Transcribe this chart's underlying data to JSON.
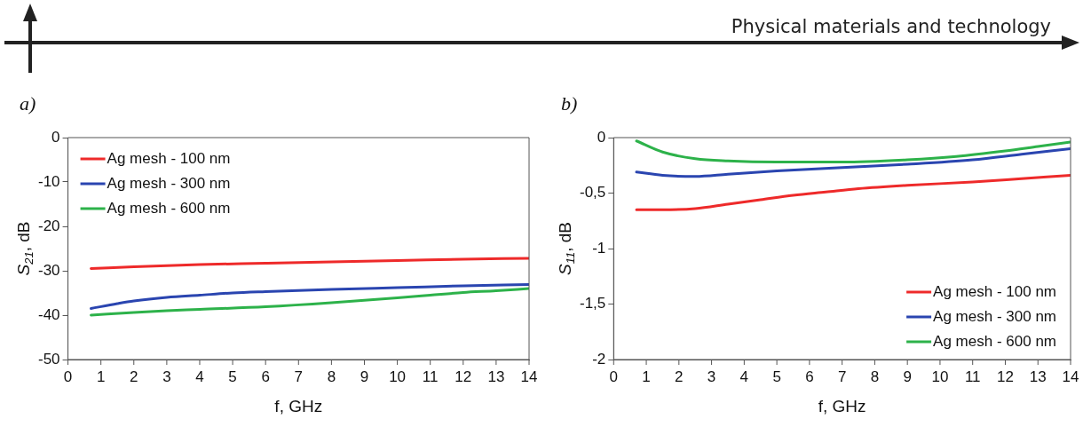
{
  "chart_data": [
    {
      "type": "other",
      "title": "Physical materials and technology"
    },
    {
      "type": "line",
      "title": "a)",
      "xlabel": "f, GHz",
      "ylabel": "S$_{21}$, dB",
      "xlim": [
        0,
        14
      ],
      "xticks": [
        0,
        1,
        2,
        3,
        4,
        5,
        6,
        7,
        8,
        9,
        10,
        11,
        12,
        13,
        14
      ],
      "ylim": [
        -50,
        0
      ],
      "yticks": [
        -50,
        -40,
        -30,
        -20,
        -10,
        0
      ],
      "grid": false,
      "legend": "top left",
      "marker": "none",
      "series": [
        {
          "name": "Ag mesh - 100 nm",
          "color": "#ee2a2a",
          "x": [
            0.7,
            2,
            4,
            6,
            8,
            10,
            12,
            14
          ],
          "values": [
            -29.5,
            -29.1,
            -28.6,
            -28.3,
            -28,
            -27.7,
            -27.4,
            -27.2
          ]
        },
        {
          "name": "Ag mesh - 300 nm",
          "color": "#2a45b0",
          "x": [
            0.7,
            1.5,
            2,
            3,
            4,
            5,
            6,
            8,
            10,
            12,
            14
          ],
          "values": [
            -38.5,
            -37.4,
            -36.8,
            -36,
            -35.5,
            -35,
            -34.7,
            -34.2,
            -33.8,
            -33.4,
            -33.1
          ]
        },
        {
          "name": "Ag mesh - 600 nm",
          "color": "#2db24a",
          "x": [
            0.7,
            2,
            3,
            4,
            6,
            8,
            10,
            11,
            12,
            13,
            14
          ],
          "values": [
            -40,
            -39.4,
            -39,
            -38.7,
            -38.1,
            -37.2,
            -36.1,
            -35.5,
            -34.9,
            -34.5,
            -34
          ]
        }
      ]
    },
    {
      "type": "line",
      "title": "b)",
      "xlabel": "f, GHz",
      "ylabel": "S$_{11}$, dB",
      "xlim": [
        0,
        14
      ],
      "xticks": [
        0,
        1,
        2,
        3,
        4,
        5,
        6,
        7,
        8,
        9,
        10,
        11,
        12,
        13,
        14
      ],
      "ylim": [
        -2,
        0
      ],
      "yticks": [
        {
          "value": -2,
          "label": "-2"
        },
        {
          "value": -1.5,
          "label": "-1,5"
        },
        {
          "value": -1,
          "label": "-1"
        },
        {
          "value": -0.5,
          "label": "-0,5"
        },
        {
          "value": 0,
          "label": "0"
        }
      ],
      "grid": false,
      "legend": "bottom right",
      "marker": "none",
      "series": [
        {
          "name": "Ag mesh - 100 nm",
          "color": "#ee2a2a",
          "x": [
            0.7,
            1.5,
            2.5,
            3.5,
            4.5,
            5.5,
            6.5,
            7.5,
            9,
            11,
            12.5,
            14
          ],
          "values": [
            -0.65,
            -0.65,
            -0.64,
            -0.6,
            -0.56,
            -0.52,
            -0.49,
            -0.46,
            -0.43,
            -0.4,
            -0.37,
            -0.34
          ]
        },
        {
          "name": "Ag mesh - 300 nm",
          "color": "#2a45b0",
          "x": [
            0.7,
            1.5,
            2.5,
            3.5,
            5,
            7,
            9,
            11,
            12.5,
            14
          ],
          "values": [
            -0.31,
            -0.34,
            -0.35,
            -0.33,
            -0.3,
            -0.27,
            -0.24,
            -0.2,
            -0.15,
            -0.1
          ]
        },
        {
          "name": "Ag mesh - 600 nm",
          "color": "#2db24a",
          "x": [
            0.7,
            1.5,
            2.5,
            3.5,
            5,
            7,
            9,
            10.5,
            12,
            13,
            14
          ],
          "values": [
            -0.03,
            -0.13,
            -0.19,
            -0.21,
            -0.22,
            -0.22,
            -0.2,
            -0.17,
            -0.12,
            -0.08,
            -0.04
          ]
        }
      ]
    }
  ]
}
